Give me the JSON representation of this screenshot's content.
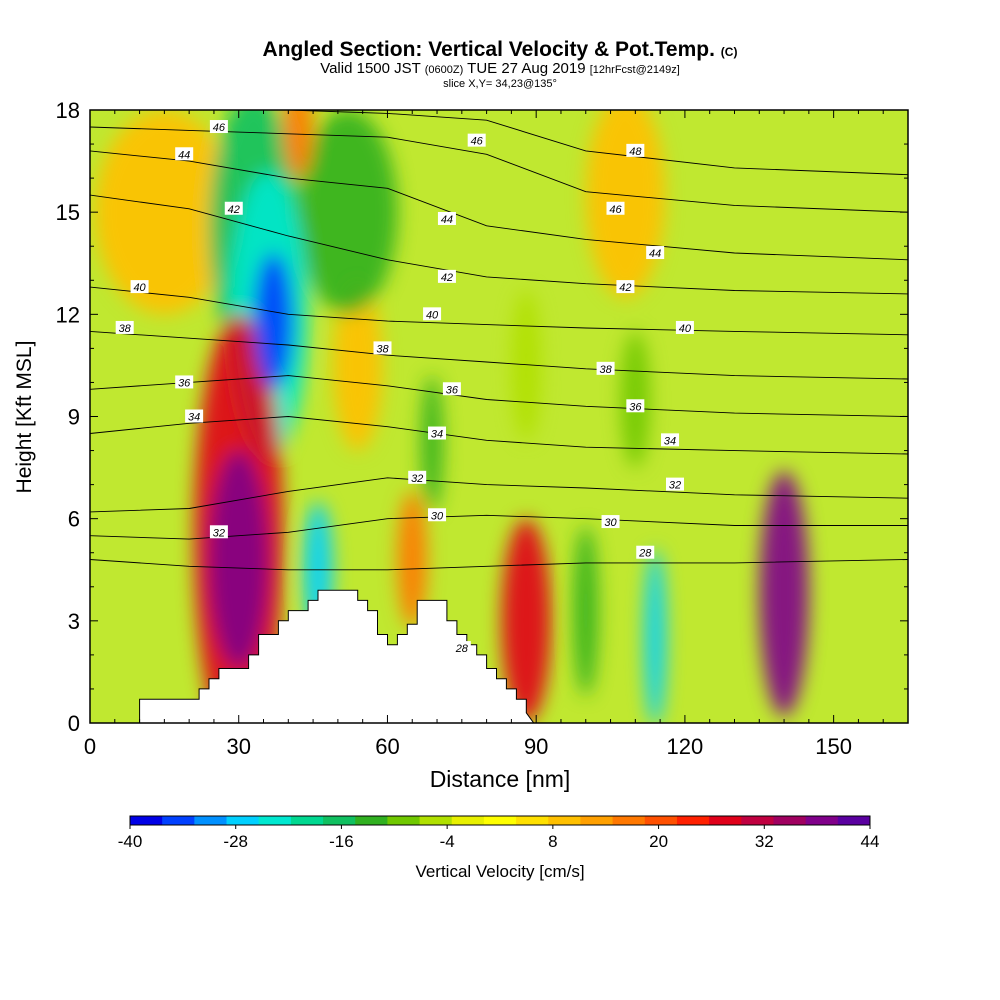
{
  "title": {
    "main": "Angled Section: Vertical Velocity & Pot.Temp.",
    "main_suffix": "(C)",
    "valid_prefix": "Valid 1500 JST",
    "valid_z": "(0600Z)",
    "valid_date": "TUE 27 Aug 2019",
    "forecast": "[12hrFcst@2149z]",
    "slice": "slice X,Y= 34,23@135°"
  },
  "colorbar": {
    "label": "Vertical Velocity [cm/s]",
    "ticks": [
      "-40",
      "-28",
      "-16",
      "-4",
      "8",
      "20",
      "32",
      "44"
    ],
    "colors": [
      "#0000e6",
      "#0040ff",
      "#0090ff",
      "#00d0ff",
      "#00e8d0",
      "#00d890",
      "#10c060",
      "#30b020",
      "#70c800",
      "#b0e000",
      "#e8f000",
      "#ffff00",
      "#ffe000",
      "#ffc000",
      "#ffa000",
      "#ff7800",
      "#ff5000",
      "#ff2000",
      "#e0001a",
      "#c00040",
      "#a00060",
      "#80008a",
      "#5a00a0"
    ]
  },
  "chart_data": {
    "type": "heatmap",
    "xlabel": "Distance [nm]",
    "ylabel": "Height [Kft MSL]",
    "xlim": [
      0,
      165
    ],
    "ylim": [
      0,
      18
    ],
    "xticks": [
      "0",
      "30",
      "60",
      "90",
      "120",
      "150"
    ],
    "yticks": [
      "0",
      "3",
      "6",
      "9",
      "12",
      "15",
      "18"
    ],
    "z_label": "Vertical Velocity [cm/s]",
    "z_range": [
      -40,
      44
    ],
    "cells": [
      {
        "x": 30,
        "y": 4.8,
        "v": 40,
        "rx": 6,
        "ry": 3.2
      },
      {
        "x": 30,
        "y": 5.5,
        "v": 28,
        "rx": 9,
        "ry": 6.5
      },
      {
        "x": 88,
        "y": 3.0,
        "v": 28,
        "rx": 5,
        "ry": 3.0
      },
      {
        "x": 140,
        "y": 3.8,
        "v": 38,
        "rx": 5,
        "ry": 3.6
      },
      {
        "x": 42,
        "y": 17.5,
        "v": 18,
        "rx": 3,
        "ry": 1.5
      },
      {
        "x": 65,
        "y": 4.8,
        "v": 16,
        "rx": 3,
        "ry": 2.0
      },
      {
        "x": 54,
        "y": 10.5,
        "v": 10,
        "rx": 5,
        "ry": 2.5
      },
      {
        "x": 15,
        "y": 15.0,
        "v": 10,
        "rx": 14,
        "ry": 3.0
      },
      {
        "x": 108,
        "y": 15.5,
        "v": 8,
        "rx": 8,
        "ry": 3.0
      },
      {
        "x": 37,
        "y": 11.8,
        "v": -36,
        "rx": 4,
        "ry": 2.0
      },
      {
        "x": 36,
        "y": 12.0,
        "v": -24,
        "rx": 8,
        "ry": 4.2
      },
      {
        "x": 33,
        "y": 14.5,
        "v": -16,
        "rx": 9,
        "ry": 4.0
      },
      {
        "x": 52,
        "y": 15.0,
        "v": -12,
        "rx": 10,
        "ry": 3.0
      },
      {
        "x": 46,
        "y": 4.5,
        "v": -26,
        "rx": 3,
        "ry": 2.0
      },
      {
        "x": 114,
        "y": 2.5,
        "v": -28,
        "rx": 2.2,
        "ry": 2.6
      },
      {
        "x": 100,
        "y": 3.3,
        "v": -12,
        "rx": 2.5,
        "ry": 2.5
      },
      {
        "x": 69,
        "y": 8.2,
        "v": -12,
        "rx": 2.2,
        "ry": 2.0
      },
      {
        "x": 110,
        "y": 9.5,
        "v": -8,
        "rx": 3,
        "ry": 2.0
      },
      {
        "x": 88,
        "y": 10.5,
        "v": -6,
        "rx": 3,
        "ry": 2.2
      }
    ],
    "contours": {
      "series": [
        {
          "name": "28",
          "x": [
            0,
            20,
            40,
            60,
            80,
            100,
            130,
            165
          ],
          "y": [
            4.8,
            4.6,
            4.5,
            4.5,
            4.6,
            4.7,
            4.7,
            4.8
          ]
        },
        {
          "name": "30",
          "x": [
            0,
            20,
            40,
            60,
            80,
            100,
            130,
            165
          ],
          "y": [
            5.5,
            5.4,
            5.6,
            6.0,
            6.1,
            6.0,
            5.8,
            5.8
          ]
        },
        {
          "name": "32",
          "x": [
            0,
            20,
            40,
            60,
            80,
            100,
            130,
            165
          ],
          "y": [
            6.2,
            6.3,
            6.8,
            7.2,
            7.0,
            6.9,
            6.7,
            6.6
          ]
        },
        {
          "name": "34",
          "x": [
            0,
            20,
            40,
            60,
            80,
            100,
            130,
            165
          ],
          "y": [
            8.5,
            8.8,
            9.0,
            8.7,
            8.3,
            8.1,
            8.0,
            7.9
          ]
        },
        {
          "name": "36",
          "x": [
            0,
            20,
            40,
            60,
            80,
            100,
            130,
            165
          ],
          "y": [
            9.8,
            10.0,
            10.2,
            9.9,
            9.5,
            9.3,
            9.1,
            9.0
          ]
        },
        {
          "name": "38",
          "x": [
            0,
            20,
            40,
            60,
            80,
            100,
            130,
            165
          ],
          "y": [
            11.5,
            11.3,
            11.1,
            10.8,
            10.6,
            10.4,
            10.2,
            10.1
          ]
        },
        {
          "name": "40",
          "x": [
            0,
            20,
            40,
            60,
            80,
            100,
            130,
            165
          ],
          "y": [
            12.8,
            12.5,
            12.0,
            11.8,
            11.7,
            11.6,
            11.5,
            11.4
          ]
        },
        {
          "name": "42",
          "x": [
            0,
            20,
            40,
            60,
            80,
            100,
            130,
            165
          ],
          "y": [
            15.5,
            15.1,
            14.3,
            13.6,
            13.1,
            12.9,
            12.7,
            12.6
          ]
        },
        {
          "name": "44",
          "x": [
            0,
            20,
            40,
            60,
            80,
            100,
            130,
            165
          ],
          "y": [
            16.8,
            16.5,
            16.0,
            15.7,
            14.6,
            14.2,
            13.8,
            13.6
          ]
        },
        {
          "name": "46",
          "x": [
            0,
            20,
            40,
            60,
            80,
            100,
            130,
            165
          ],
          "y": [
            17.5,
            17.4,
            17.3,
            17.2,
            16.7,
            15.6,
            15.2,
            15.0
          ]
        },
        {
          "name": "48",
          "x": [
            0,
            20,
            40,
            60,
            80,
            100,
            130,
            165
          ],
          "y": [
            18.2,
            18.1,
            18.0,
            17.9,
            17.7,
            16.8,
            16.3,
            16.1
          ]
        }
      ],
      "labels": [
        {
          "text": "46",
          "x": 26,
          "y": 17.5
        },
        {
          "text": "44",
          "x": 19,
          "y": 16.7
        },
        {
          "text": "42",
          "x": 29,
          "y": 15.1
        },
        {
          "text": "40",
          "x": 10,
          "y": 12.8
        },
        {
          "text": "38",
          "x": 7,
          "y": 11.6
        },
        {
          "text": "36",
          "x": 19,
          "y": 10.0
        },
        {
          "text": "34",
          "x": 21,
          "y": 9.0
        },
        {
          "text": "32",
          "x": 26,
          "y": 5.6
        },
        {
          "text": "46",
          "x": 78,
          "y": 17.1
        },
        {
          "text": "48",
          "x": 110,
          "y": 16.8
        },
        {
          "text": "46",
          "x": 106,
          "y": 15.1
        },
        {
          "text": "44",
          "x": 72,
          "y": 14.8
        },
        {
          "text": "44",
          "x": 114,
          "y": 13.8
        },
        {
          "text": "42",
          "x": 72,
          "y": 13.1
        },
        {
          "text": "42",
          "x": 108,
          "y": 12.8
        },
        {
          "text": "40",
          "x": 69,
          "y": 12.0
        },
        {
          "text": "40",
          "x": 120,
          "y": 11.6
        },
        {
          "text": "38",
          "x": 59,
          "y": 11.0
        },
        {
          "text": "38",
          "x": 104,
          "y": 10.4
        },
        {
          "text": "36",
          "x": 73,
          "y": 9.8
        },
        {
          "text": "36",
          "x": 110,
          "y": 9.3
        },
        {
          "text": "34",
          "x": 70,
          "y": 8.5
        },
        {
          "text": "34",
          "x": 117,
          "y": 8.3
        },
        {
          "text": "32",
          "x": 66,
          "y": 7.2
        },
        {
          "text": "32",
          "x": 118,
          "y": 7.0
        },
        {
          "text": "30",
          "x": 70,
          "y": 6.1
        },
        {
          "text": "30",
          "x": 105,
          "y": 5.9
        },
        {
          "text": "28",
          "x": 112,
          "y": 5.0
        },
        {
          "text": "28",
          "x": 75,
          "y": 2.2
        }
      ]
    },
    "terrain": {
      "x": [
        10,
        20,
        22,
        24,
        26,
        28,
        30,
        32,
        34,
        36,
        38,
        40,
        42,
        44,
        46,
        48,
        50,
        52,
        54,
        56,
        58,
        60,
        62,
        64,
        66,
        68,
        70,
        72,
        74,
        76,
        78,
        80,
        82,
        84,
        86,
        88
      ],
      "y": [
        0.7,
        0.7,
        1.0,
        1.3,
        1.6,
        1.6,
        1.6,
        2.0,
        2.6,
        2.6,
        3.0,
        3.3,
        3.3,
        3.6,
        3.9,
        3.9,
        3.9,
        3.9,
        3.6,
        3.3,
        2.6,
        2.3,
        2.6,
        2.9,
        3.6,
        3.6,
        3.6,
        3.0,
        2.6,
        2.3,
        2.0,
        1.6,
        1.3,
        1.0,
        0.7,
        0.3
      ]
    }
  }
}
